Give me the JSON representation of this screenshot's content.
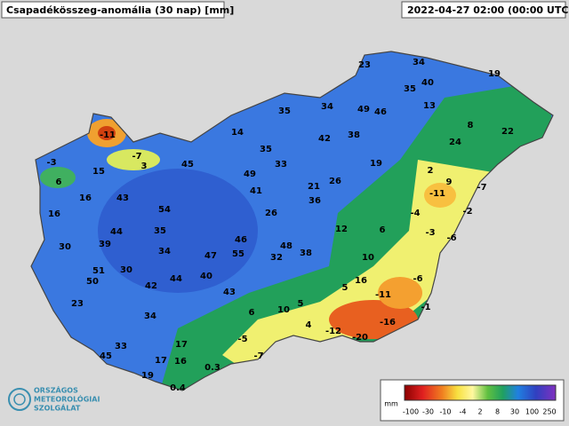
{
  "header": {
    "title": "Csapadékösszeg-anomália (30 nap) [mm]",
    "timestamp": "2022-04-27 02:00 (00:00 UTC)"
  },
  "stations": [
    23,
    34,
    19,
    35,
    40,
    13,
    49,
    46,
    34,
    35,
    8,
    22,
    24,
    14,
    42,
    38,
    -11,
    35,
    33,
    19,
    -7,
    -3,
    15,
    45,
    3,
    49,
    26,
    2,
    9,
    6,
    41,
    21,
    -11,
    -7,
    16,
    43,
    36,
    16,
    54,
    26,
    -4,
    -2,
    35,
    44,
    12,
    6,
    -3,
    -6,
    39,
    30,
    46,
    34,
    48,
    55,
    47,
    38,
    32,
    10,
    51,
    30,
    50,
    44,
    40,
    16,
    -6,
    42,
    5,
    -11,
    43,
    23,
    6,
    10,
    5,
    -1,
    34,
    4,
    -12,
    -16,
    -20,
    -5,
    17,
    33,
    45,
    -7,
    17,
    16,
    0.3,
    19,
    0.4
  ],
  "legend": {
    "unit": "mm",
    "labels": [
      "-100",
      "-30",
      "-10",
      "-4",
      "2",
      "8",
      "30",
      "100",
      "250"
    ]
  },
  "logo": {
    "lines": [
      "ORSZÁGOS",
      "METEOROLÓGIAI",
      "SZOLGÁLAT"
    ]
  }
}
